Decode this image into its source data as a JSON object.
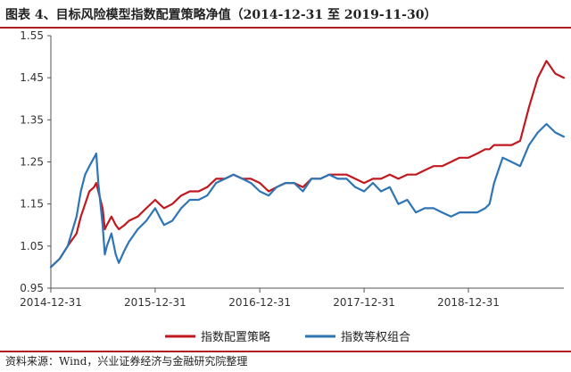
{
  "title": "图表 4、目标风险模型指数配置策略净值（2014-12-31 至 2019-11-30）",
  "source": "资料来源：Wind，兴业证券经济与金融研究院整理",
  "chart_data": {
    "type": "line",
    "title": "图表 4、目标风险模型指数配置策略净值（2014-12-31 至 2019-11-30）",
    "xlabel": "",
    "ylabel": "",
    "x_ticks": [
      "2014-12-31",
      "2015-12-31",
      "2016-12-31",
      "2017-12-31",
      "2018-12-31"
    ],
    "xlim": [
      "2014-12-31",
      "2019-11-30"
    ],
    "y_ticks": [
      "0.95",
      "1.05",
      "1.15",
      "1.25",
      "1.35",
      "1.45",
      "1.55"
    ],
    "ylim": [
      0.95,
      1.55
    ],
    "grid": false,
    "legend_position": "bottom",
    "x": [
      "2014-12-31",
      "2015-01-31",
      "2015-02-28",
      "2015-03-31",
      "2015-04-15",
      "2015-04-30",
      "2015-05-15",
      "2015-05-31",
      "2015-06-08",
      "2015-06-15",
      "2015-06-30",
      "2015-07-08",
      "2015-07-15",
      "2015-07-31",
      "2015-08-15",
      "2015-08-26",
      "2015-09-15",
      "2015-09-30",
      "2015-10-31",
      "2015-11-30",
      "2015-12-31",
      "2016-01-15",
      "2016-01-31",
      "2016-02-29",
      "2016-03-31",
      "2016-04-30",
      "2016-05-31",
      "2016-06-30",
      "2016-07-31",
      "2016-08-31",
      "2016-09-30",
      "2016-10-31",
      "2016-11-30",
      "2016-12-31",
      "2017-01-31",
      "2017-02-28",
      "2017-03-31",
      "2017-04-30",
      "2017-05-31",
      "2017-06-30",
      "2017-07-31",
      "2017-08-31",
      "2017-09-30",
      "2017-10-31",
      "2017-11-30",
      "2017-12-31",
      "2018-01-31",
      "2018-02-28",
      "2018-03-31",
      "2018-04-30",
      "2018-05-31",
      "2018-06-30",
      "2018-07-31",
      "2018-08-31",
      "2018-09-30",
      "2018-10-31",
      "2018-11-30",
      "2018-12-31",
      "2019-01-31",
      "2019-02-28",
      "2019-03-15",
      "2019-03-31",
      "2019-04-15",
      "2019-04-30",
      "2019-05-31",
      "2019-06-30",
      "2019-07-31",
      "2019-08-31",
      "2019-09-30",
      "2019-10-31",
      "2019-11-30"
    ],
    "series": [
      {
        "name": "指数配置策略",
        "color": "#c0191f",
        "values": [
          1.0,
          1.02,
          1.05,
          1.08,
          1.12,
          1.15,
          1.18,
          1.19,
          1.2,
          1.18,
          1.14,
          1.09,
          1.1,
          1.12,
          1.1,
          1.09,
          1.1,
          1.11,
          1.12,
          1.14,
          1.16,
          1.15,
          1.14,
          1.15,
          1.17,
          1.18,
          1.18,
          1.19,
          1.21,
          1.21,
          1.22,
          1.21,
          1.21,
          1.2,
          1.18,
          1.19,
          1.2,
          1.2,
          1.19,
          1.21,
          1.21,
          1.22,
          1.22,
          1.22,
          1.21,
          1.2,
          1.21,
          1.21,
          1.22,
          1.21,
          1.22,
          1.22,
          1.23,
          1.24,
          1.24,
          1.25,
          1.26,
          1.26,
          1.27,
          1.28,
          1.28,
          1.29,
          1.29,
          1.29,
          1.29,
          1.3,
          1.38,
          1.45,
          1.49,
          1.46,
          1.45
        ]
      },
      {
        "name": "指数等权组合",
        "color": "#2e75b6",
        "values": [
          1.0,
          1.02,
          1.05,
          1.12,
          1.18,
          1.22,
          1.24,
          1.26,
          1.27,
          1.2,
          1.1,
          1.03,
          1.05,
          1.08,
          1.03,
          1.01,
          1.04,
          1.06,
          1.09,
          1.11,
          1.14,
          1.12,
          1.1,
          1.11,
          1.14,
          1.16,
          1.16,
          1.17,
          1.2,
          1.21,
          1.22,
          1.21,
          1.2,
          1.18,
          1.17,
          1.19,
          1.2,
          1.2,
          1.18,
          1.21,
          1.21,
          1.22,
          1.21,
          1.21,
          1.19,
          1.18,
          1.2,
          1.18,
          1.19,
          1.15,
          1.16,
          1.13,
          1.14,
          1.14,
          1.13,
          1.12,
          1.13,
          1.13,
          1.13,
          1.14,
          1.15,
          1.2,
          1.23,
          1.26,
          1.25,
          1.24,
          1.29,
          1.32,
          1.34,
          1.32,
          1.31
        ]
      }
    ]
  }
}
